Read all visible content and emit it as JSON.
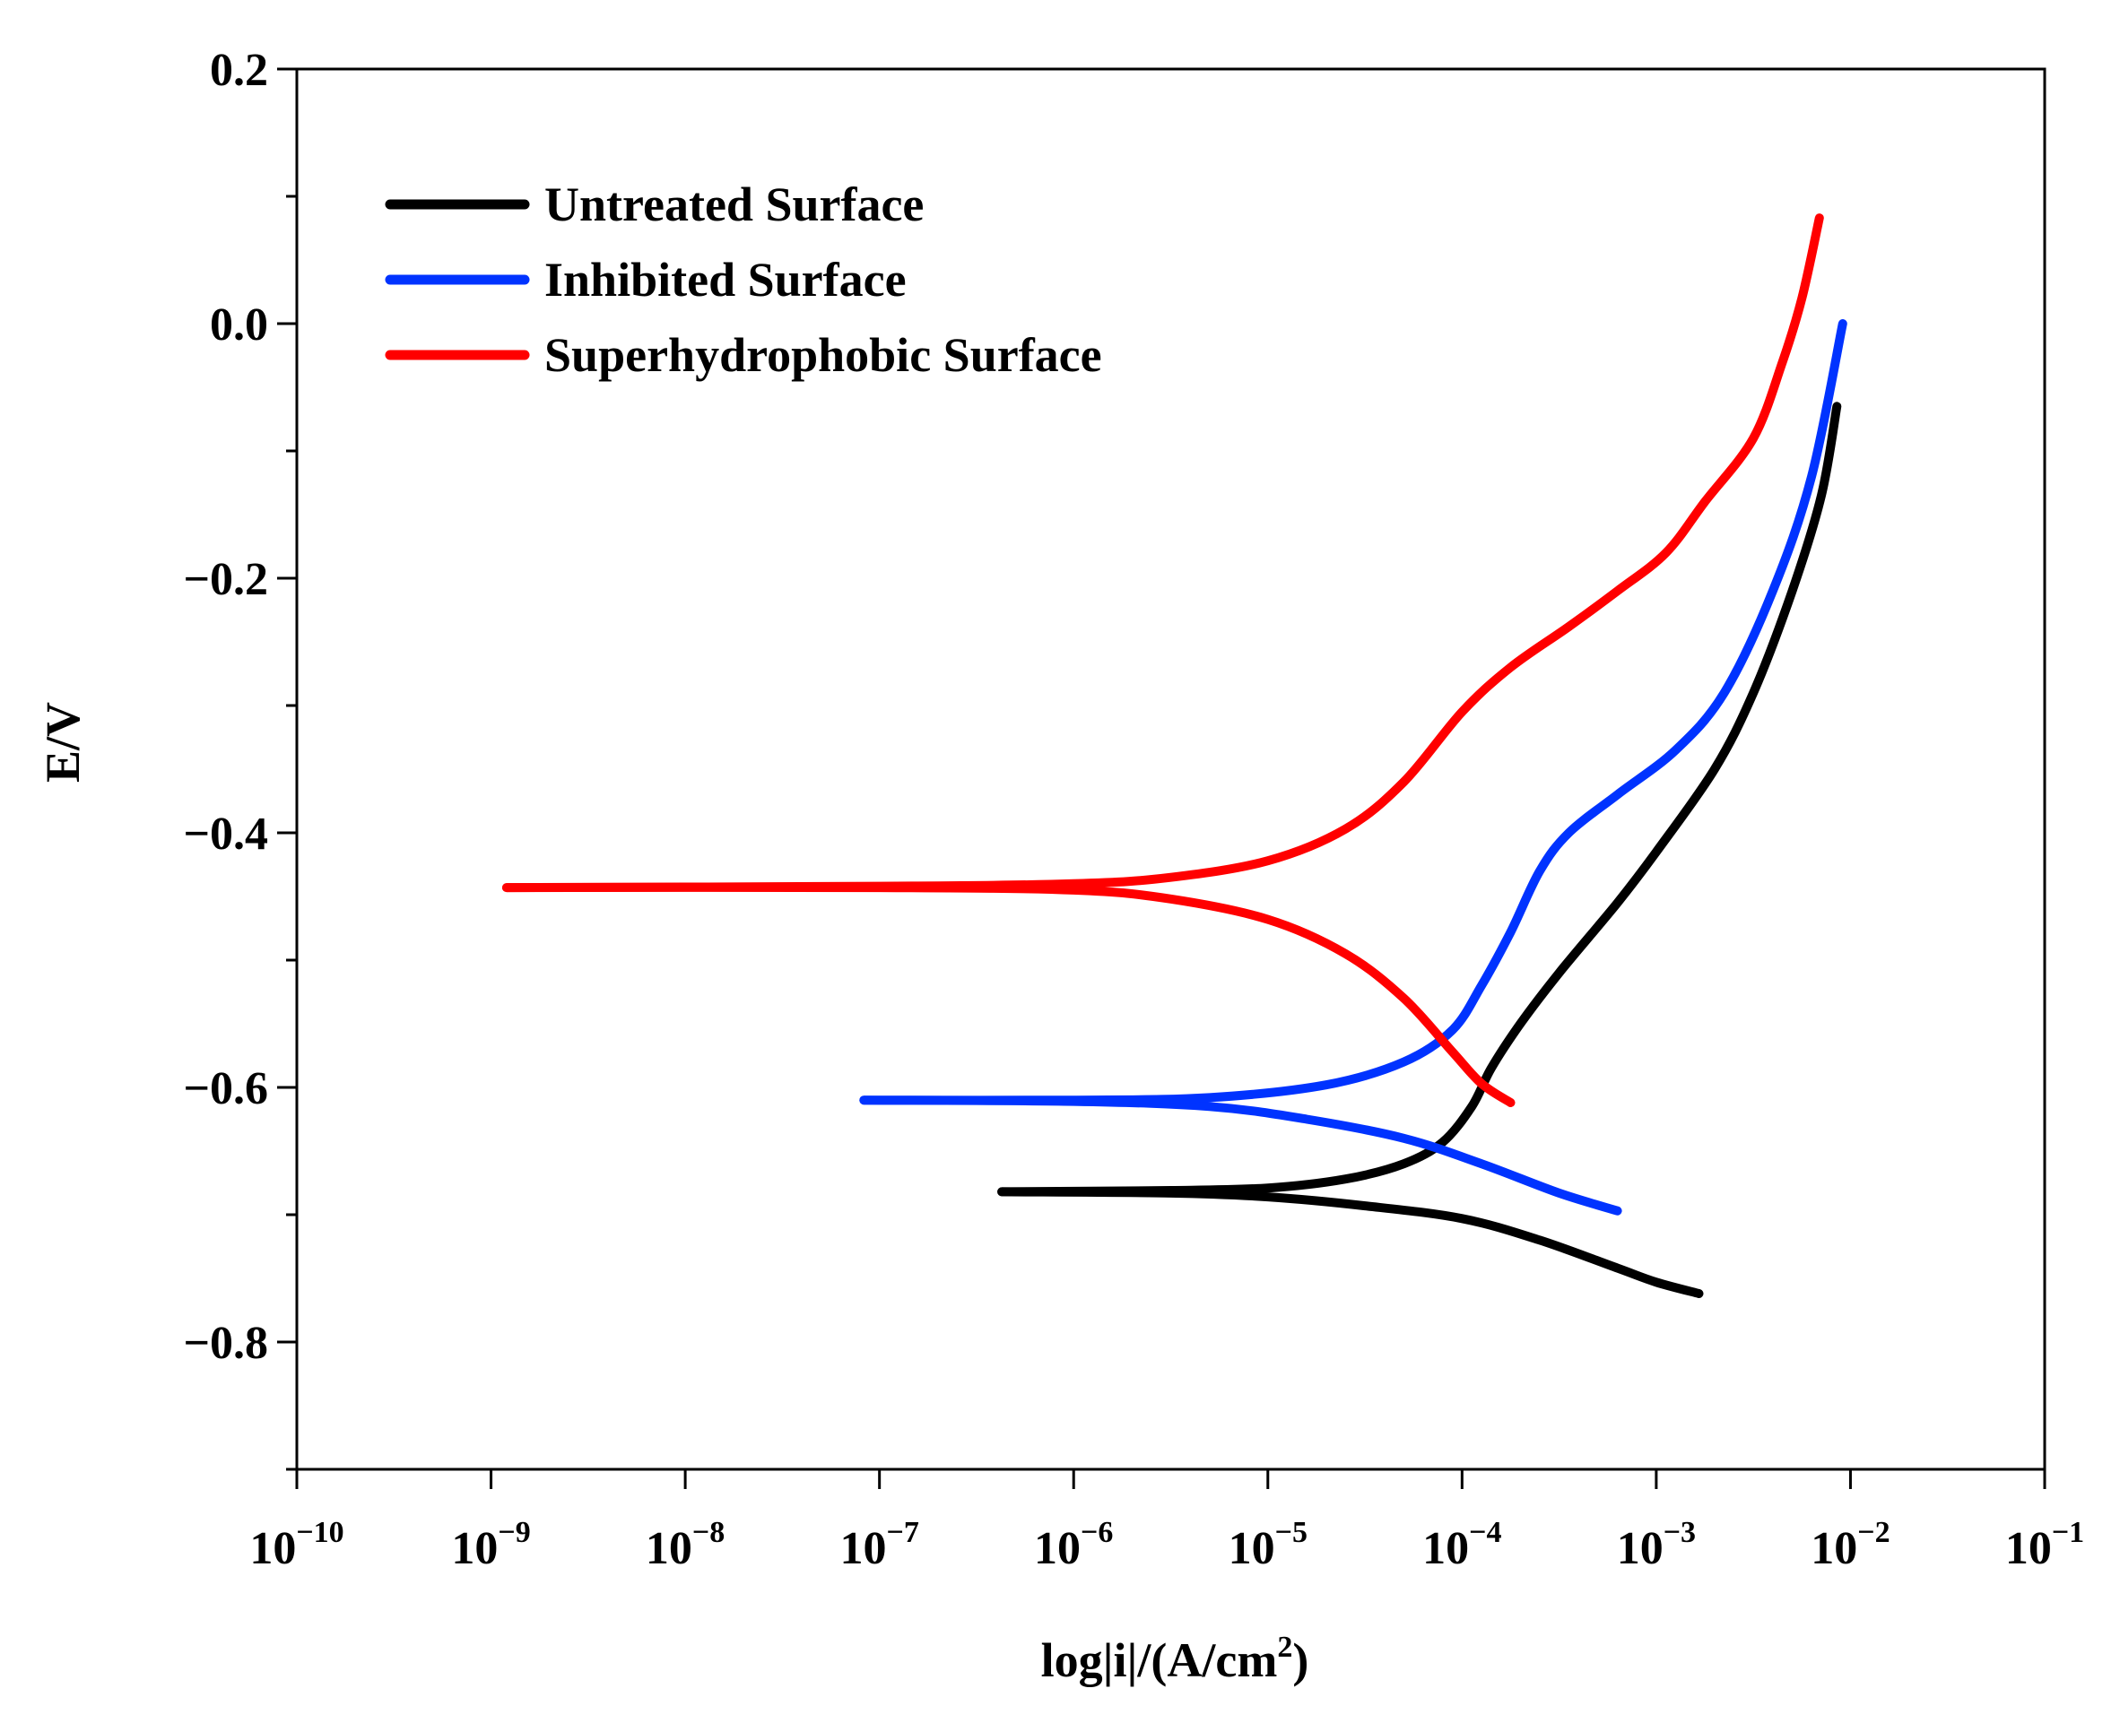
{
  "chart_data": {
    "type": "line",
    "title": "",
    "xlabel": "log|i|/(A/cm",
    "xlabel_sup": "2",
    "xlabel_suffix": ")",
    "ylabel": "E/V",
    "x_scale": "log",
    "xlim_exponent": [
      -10,
      -1
    ],
    "ylim": [
      -0.9,
      0.2
    ],
    "x_ticks": [
      {
        "base": "10",
        "exp": "−10",
        "e": -10
      },
      {
        "base": "10",
        "exp": "−9",
        "e": -9
      },
      {
        "base": "10",
        "exp": "−8",
        "e": -8
      },
      {
        "base": "10",
        "exp": "−7",
        "e": -7
      },
      {
        "base": "10",
        "exp": "−6",
        "e": -6
      },
      {
        "base": "10",
        "exp": "−5",
        "e": -5
      },
      {
        "base": "10",
        "exp": "−4",
        "e": -4
      },
      {
        "base": "10",
        "exp": "−3",
        "e": -3
      },
      {
        "base": "10",
        "exp": "−2",
        "e": -2
      },
      {
        "base": "10",
        "exp": "−1",
        "e": -1
      }
    ],
    "y_ticks": [
      {
        "value": 0.2,
        "label": "0.2"
      },
      {
        "value": 0.0,
        "label": "0.0"
      },
      {
        "value": -0.2,
        "label": "−0.2"
      },
      {
        "value": -0.4,
        "label": "−0.4"
      },
      {
        "value": -0.6,
        "label": "−0.6"
      },
      {
        "value": -0.8,
        "label": "−0.8"
      }
    ],
    "y_minor_ticks": [
      0.1,
      -0.1,
      -0.3,
      -0.5,
      -0.7,
      -0.9
    ],
    "legend_position": "top-left",
    "series": [
      {
        "name": "Untreated Surface",
        "color": "#000000",
        "anodic": [
          [
            -6.37,
            -0.682
          ],
          [
            -5.5,
            -0.681
          ],
          [
            -5.0,
            -0.679
          ],
          [
            -4.6,
            -0.672
          ],
          [
            -4.3,
            -0.66
          ],
          [
            -4.1,
            -0.643
          ],
          [
            -3.95,
            -0.615
          ],
          [
            -3.85,
            -0.585
          ],
          [
            -3.7,
            -0.55
          ],
          [
            -3.5,
            -0.51
          ],
          [
            -3.2,
            -0.455
          ],
          [
            -3.0,
            -0.415
          ],
          [
            -2.7,
            -0.35
          ],
          [
            -2.5,
            -0.29
          ],
          [
            -2.3,
            -0.21
          ],
          [
            -2.15,
            -0.135
          ],
          [
            -2.07,
            -0.065
          ]
        ],
        "cathodic": [
          [
            -6.37,
            -0.682
          ],
          [
            -5.5,
            -0.683
          ],
          [
            -5.0,
            -0.686
          ],
          [
            -4.5,
            -0.693
          ],
          [
            -4.0,
            -0.703
          ],
          [
            -3.6,
            -0.72
          ],
          [
            -3.2,
            -0.742
          ],
          [
            -3.0,
            -0.753
          ],
          [
            -2.78,
            -0.762
          ]
        ]
      },
      {
        "name": "Inhibited Surface",
        "color": "#0033ff",
        "anodic": [
          [
            -7.08,
            -0.61
          ],
          [
            -6.0,
            -0.61
          ],
          [
            -5.3,
            -0.608
          ],
          [
            -4.7,
            -0.598
          ],
          [
            -4.3,
            -0.58
          ],
          [
            -4.05,
            -0.555
          ],
          [
            -3.9,
            -0.52
          ],
          [
            -3.75,
            -0.478
          ],
          [
            -3.6,
            -0.43
          ],
          [
            -3.45,
            -0.4
          ],
          [
            -3.2,
            -0.37
          ],
          [
            -2.9,
            -0.335
          ],
          [
            -2.65,
            -0.29
          ],
          [
            -2.4,
            -0.21
          ],
          [
            -2.2,
            -0.12
          ],
          [
            -2.04,
            0.0
          ]
        ],
        "cathodic": [
          [
            -7.08,
            -0.61
          ],
          [
            -6.0,
            -0.611
          ],
          [
            -5.3,
            -0.615
          ],
          [
            -4.8,
            -0.625
          ],
          [
            -4.3,
            -0.64
          ],
          [
            -3.9,
            -0.66
          ],
          [
            -3.5,
            -0.683
          ],
          [
            -3.2,
            -0.697
          ]
        ]
      },
      {
        "name": "Superhydrophobic Surface",
        "color": "#ff0000",
        "anodic": [
          [
            -8.92,
            -0.443
          ],
          [
            -7.0,
            -0.442
          ],
          [
            -6.0,
            -0.44
          ],
          [
            -5.5,
            -0.435
          ],
          [
            -5.0,
            -0.422
          ],
          [
            -4.6,
            -0.397
          ],
          [
            -4.3,
            -0.36
          ],
          [
            -4.0,
            -0.305
          ],
          [
            -3.75,
            -0.27
          ],
          [
            -3.45,
            -0.238
          ],
          [
            -3.2,
            -0.21
          ],
          [
            -2.95,
            -0.18
          ],
          [
            -2.75,
            -0.14
          ],
          [
            -2.5,
            -0.09
          ],
          [
            -2.35,
            -0.03
          ],
          [
            -2.25,
            0.02
          ],
          [
            -2.16,
            0.083
          ]
        ],
        "cathodic": [
          [
            -8.92,
            -0.443
          ],
          [
            -7.0,
            -0.443
          ],
          [
            -6.0,
            -0.445
          ],
          [
            -5.5,
            -0.452
          ],
          [
            -5.0,
            -0.468
          ],
          [
            -4.6,
            -0.495
          ],
          [
            -4.3,
            -0.53
          ],
          [
            -4.05,
            -0.572
          ],
          [
            -3.9,
            -0.597
          ],
          [
            -3.75,
            -0.612
          ]
        ]
      }
    ]
  }
}
